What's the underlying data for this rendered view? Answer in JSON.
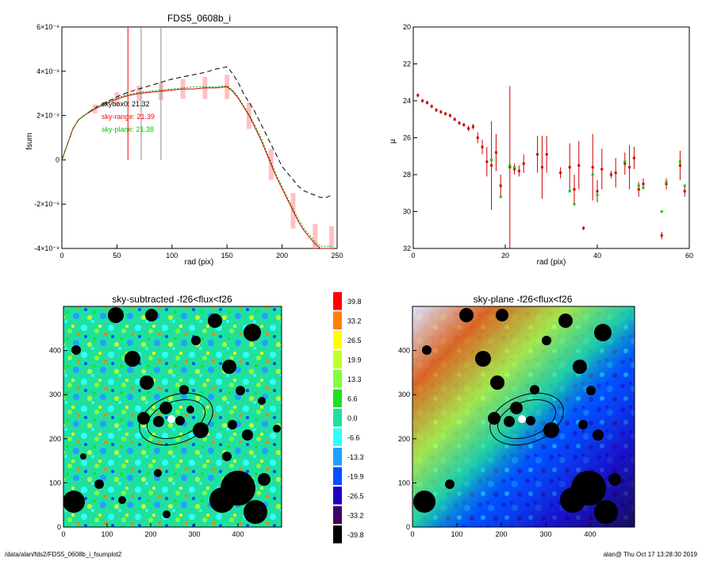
{
  "chart_data": [
    {
      "type": "line",
      "title": "FDS5_0608b_i",
      "xlabel": "rad (pix)",
      "ylabel": "fsum",
      "xlim": [
        0,
        250
      ],
      "ylim": [
        -4e-09,
        6e-09
      ],
      "x_ticks": [
        "0",
        "50",
        "100",
        "150",
        "200",
        "250"
      ],
      "y_ticks": [
        "-4×10⁻⁹",
        "-2×10⁻⁹",
        "0",
        "2×10⁻⁹",
        "4×10⁻⁹",
        "6×10⁻⁹"
      ],
      "y_tick_values": [
        -4e-09,
        -2e-09,
        0,
        2e-09,
        4e-09,
        6e-09
      ],
      "vlines": [
        {
          "x": 60,
          "color": "#ff0000"
        },
        {
          "x": 72,
          "color": "#888888"
        },
        {
          "x": 90,
          "color": "#888888"
        }
      ],
      "annotations": [
        {
          "text": "skybox0: 21.32",
          "color": "#000000"
        },
        {
          "text": "sky-range: 21.39",
          "color": "#ff0000"
        },
        {
          "text": "sky-plane: 21.38",
          "color": "#00cc00"
        }
      ],
      "series": [
        {
          "style": "dashed",
          "color": "#000000",
          "x": [
            0,
            10,
            15,
            20,
            30,
            40,
            50,
            60,
            70,
            80,
            90,
            100,
            110,
            120,
            130,
            140,
            150,
            155,
            160,
            165,
            170,
            175,
            180,
            185,
            190,
            195,
            200,
            205,
            210,
            215,
            220,
            225,
            230,
            235,
            240,
            245
          ],
          "y": [
            0,
            1.4e-09,
            1.8e-09,
            2e-09,
            2.35e-09,
            2.6e-09,
            2.85e-09,
            3.05e-09,
            3.2e-09,
            3.35e-09,
            3.5e-09,
            3.65e-09,
            3.75e-09,
            3.85e-09,
            3.95e-09,
            4.1e-09,
            4.2e-09,
            3.9e-09,
            3.5e-09,
            3e-09,
            2.6e-09,
            2.2e-09,
            1.7e-09,
            1.2e-09,
            7e-10,
            2e-10,
            -3e-10,
            -6e-10,
            -9e-10,
            -1.2e-09,
            -1.4e-09,
            -1.5e-09,
            -1.6e-09,
            -1.7e-09,
            -1.7e-09,
            -1.6e-09
          ]
        },
        {
          "style": "solid",
          "color": "#cc0000",
          "x": [
            0,
            10,
            15,
            20,
            30,
            40,
            50,
            60,
            70,
            80,
            90,
            100,
            110,
            120,
            130,
            140,
            150,
            155,
            160,
            165,
            170,
            175,
            180,
            185,
            190,
            195,
            200,
            205,
            210,
            215,
            220,
            225,
            230,
            235,
            240,
            245
          ],
          "y": [
            0,
            1.4e-09,
            1.8e-09,
            2e-09,
            2.3e-09,
            2.55e-09,
            2.75e-09,
            2.9e-09,
            3e-09,
            3.05e-09,
            3.1e-09,
            3.15e-09,
            3.2e-09,
            3.2e-09,
            3.25e-09,
            3.25e-09,
            3.3e-09,
            3.1e-09,
            2.8e-09,
            2.4e-09,
            2e-09,
            1.5e-09,
            1e-09,
            4e-10,
            -2e-10,
            -8e-10,
            -1.3e-09,
            -1.8e-09,
            -2.3e-09,
            -2.8e-09,
            -3.2e-09,
            -3.5e-09,
            -3.8e-09,
            -4e-09,
            -4e-09,
            -4e-09
          ]
        },
        {
          "style": "dotted",
          "color": "#00aa00",
          "x": [
            0,
            10,
            15,
            20,
            30,
            40,
            50,
            60,
            70,
            80,
            90,
            100,
            110,
            120,
            130,
            140,
            150,
            155,
            160,
            165,
            170,
            175,
            180,
            185,
            190,
            195,
            200,
            205,
            210,
            215,
            220,
            225,
            230,
            235,
            240,
            245
          ],
          "y": [
            0,
            1.4e-09,
            1.8e-09,
            2e-09,
            2.35e-09,
            2.6e-09,
            2.8e-09,
            2.95e-09,
            3.05e-09,
            3.1e-09,
            3.15e-09,
            3.2e-09,
            3.25e-09,
            3.3e-09,
            3.3e-09,
            3.3e-09,
            3.35e-09,
            3.15e-09,
            2.85e-09,
            2.45e-09,
            2.05e-09,
            1.6e-09,
            1.1e-09,
            5e-10,
            -1e-10,
            -7e-10,
            -1.2e-09,
            -1.7e-09,
            -2.2e-09,
            -2.7e-09,
            -3.1e-09,
            -3.4e-09,
            -3.7e-09,
            -3.9e-09,
            -3.9e-09,
            -3.9e-09
          ]
        }
      ],
      "error_band": {
        "color": "#ff9999",
        "x": [
          30,
          50,
          70,
          90,
          110,
          130,
          150,
          170,
          190,
          210,
          230,
          245
        ],
        "err": [
          2e-10,
          3e-10,
          3.5e-10,
          4e-10,
          4.5e-10,
          5e-10,
          5.5e-10,
          6e-10,
          7e-10,
          8e-10,
          9e-10,
          1e-09
        ]
      }
    },
    {
      "type": "scatter",
      "xlabel": "",
      "ylabel": "μ",
      "xlim": [
        0,
        60
      ],
      "ylim": [
        32,
        20
      ],
      "x_ticks": [
        "0",
        "20",
        "40",
        "60"
      ],
      "x_tick_values": [
        0,
        20,
        40,
        60
      ],
      "y_ticks": [
        "20",
        "22",
        "24",
        "26",
        "28",
        "30",
        "32"
      ],
      "y_tick_values": [
        20,
        22,
        24,
        26,
        28,
        30,
        32
      ],
      "series": [
        {
          "color": "#cc0000",
          "x": [
            1,
            2,
            3,
            4,
            5,
            6,
            7,
            8,
            9,
            10,
            11,
            12,
            13,
            14,
            15,
            16,
            17,
            18,
            19,
            21,
            22,
            23,
            24,
            27,
            28,
            29,
            32,
            34,
            35,
            36,
            37,
            39,
            40,
            41,
            43,
            44,
            46,
            47,
            48,
            49,
            50,
            54,
            55,
            58,
            59
          ],
          "y": [
            23.7,
            24.0,
            24.1,
            24.3,
            24.5,
            24.6,
            24.7,
            24.8,
            25.0,
            25.2,
            25.3,
            25.5,
            25.4,
            26.0,
            26.5,
            27.3,
            27.5,
            26.8,
            28.6,
            27.6,
            27.7,
            27.8,
            27.4,
            26.9,
            27.6,
            26.9,
            27.9,
            27.6,
            28.8,
            27.5,
            30.9,
            27.6,
            28.9,
            27.7,
            28.0,
            27.9,
            27.4,
            27.6,
            27.1,
            28.8,
            28.5,
            31.3,
            28.5,
            27.5,
            28.9
          ],
          "err": [
            0.1,
            0.1,
            0.1,
            0.1,
            0.1,
            0.1,
            0.1,
            0.1,
            0.1,
            0.1,
            0.1,
            0.15,
            0.15,
            0.3,
            0.4,
            0.8,
            2.4,
            1.0,
            0.6,
            4.4,
            0.3,
            0.3,
            0.5,
            1.0,
            1.7,
            1.0,
            0.3,
            1.3,
            0.8,
            1.3,
            0.1,
            1.8,
            0.6,
            1.1,
            0.2,
            0.8,
            0.6,
            1.2,
            0.6,
            0.4,
            0.3,
            0.2,
            0.3,
            0.8,
            0.3
          ]
        },
        {
          "color": "#00cc00",
          "x": [
            17,
            19,
            21,
            22,
            34,
            35,
            39,
            40,
            46,
            49,
            50,
            54,
            55,
            58,
            59
          ],
          "y": [
            27.2,
            29.2,
            27.5,
            27.6,
            28.9,
            29.6,
            28.0,
            29.1,
            27.3,
            28.6,
            28.7,
            30.0,
            28.4,
            27.3,
            28.6
          ]
        }
      ]
    },
    {
      "type": "heatmap",
      "title": "sky-subtracted -f26<flux<f26",
      "xlim": [
        0,
        500
      ],
      "ylim": [
        0,
        500
      ],
      "x_ticks": [
        "0",
        "100",
        "200",
        "300",
        "400"
      ],
      "x_tick_values": [
        0,
        100,
        200,
        300,
        400
      ],
      "y_ticks": [
        "0",
        "100",
        "200",
        "300",
        "400"
      ],
      "y_tick_values": [
        0,
        100,
        200,
        300,
        400
      ]
    },
    {
      "type": "heatmap",
      "title": "sky-plane -f26<flux<f26",
      "xlim": [
        0,
        500
      ],
      "ylim": [
        0,
        500
      ],
      "x_ticks": [
        "0",
        "100",
        "200",
        "300",
        "400"
      ],
      "x_tick_values": [
        0,
        100,
        200,
        300,
        400
      ],
      "y_ticks": [
        "0",
        "100",
        "200",
        "300",
        "400"
      ],
      "y_tick_values": [
        0,
        100,
        200,
        300,
        400
      ]
    }
  ],
  "colorbar": {
    "labels": [
      "39.8",
      "33.2",
      "26.5",
      "19.9",
      "13.3",
      "6.6",
      "0.0",
      "-6.6",
      "-13.3",
      "-19.9",
      "-26.5",
      "-33.2",
      "-39.8"
    ],
    "colors": [
      "#ff0000",
      "#ff8000",
      "#ffff00",
      "#c0ff30",
      "#80ff40",
      "#20e020",
      "#20e0a0",
      "#30ffff",
      "#20a0ff",
      "#0050ff",
      "#2000c0",
      "#400060",
      "#000000"
    ]
  },
  "footer": {
    "path": "/data/alan/fds2/FDS5_0608b_i_fsumplot2",
    "stamp": "alan@ Thu Oct 17 13:28:30 2019"
  }
}
